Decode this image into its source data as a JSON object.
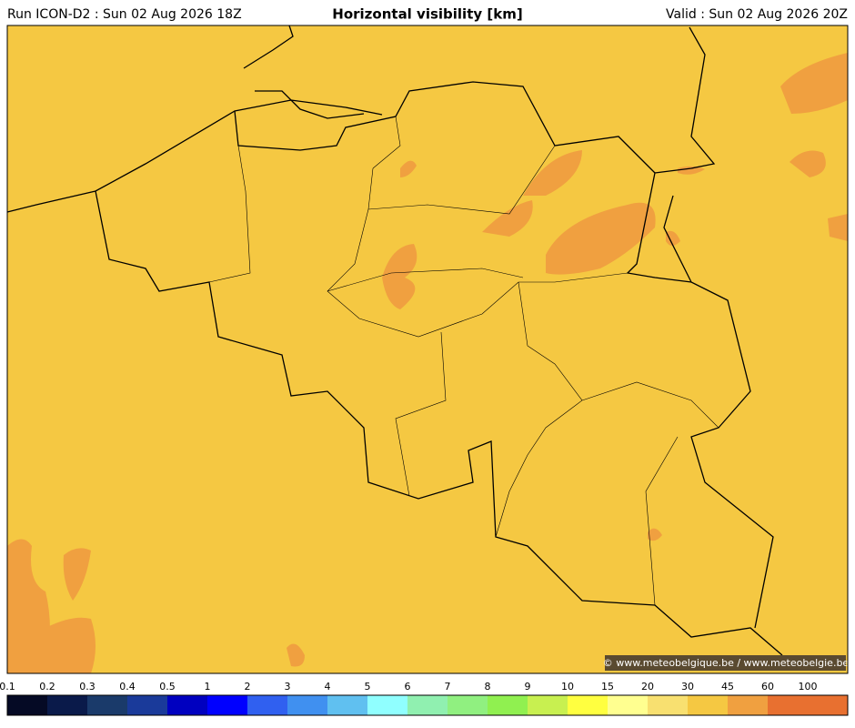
{
  "header": {
    "left": "Run ICON-D2 : Sun 02 Aug 2026 18Z",
    "title": "Horizontal visibility [km]",
    "right": "Valid : Sun 02 Aug 2026 20Z"
  },
  "credit": "© www.meteobelgique.be / www.meteobelgie.be",
  "colorbar": {
    "ticks": [
      0.1,
      0.2,
      0.3,
      0.4,
      0.5,
      1,
      2,
      3,
      4,
      5,
      6,
      7,
      8,
      9,
      10,
      15,
      20,
      30,
      45,
      60,
      100
    ],
    "colors": [
      "#050a25",
      "#0a1a4a",
      "#1a3a6a",
      "#1a3a9a",
      "#0000c0",
      "#0000ff",
      "#3060f0",
      "#4090f0",
      "#60c0f0",
      "#90ffff",
      "#90f0b0",
      "#90f080",
      "#90f050",
      "#c8f050",
      "#ffff40",
      "#ffff90",
      "#f8e070",
      "#f5c842",
      "#f0a040",
      "#e87030",
      "#e87030"
    ]
  }
}
